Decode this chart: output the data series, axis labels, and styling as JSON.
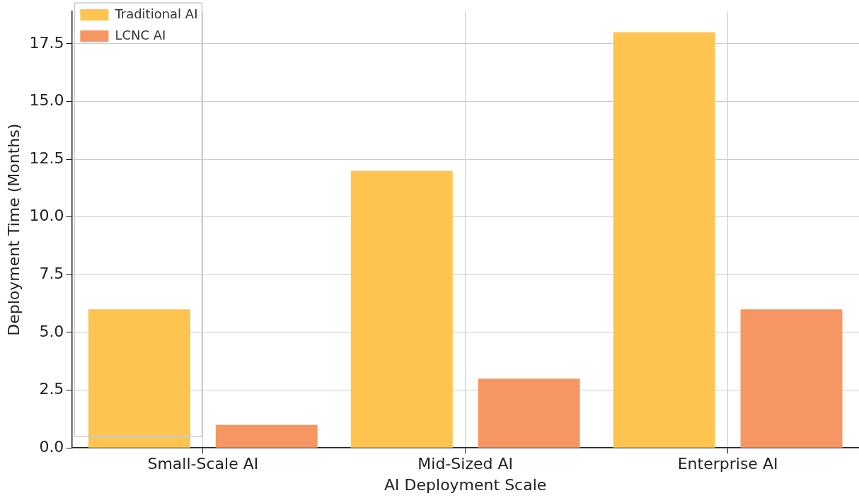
{
  "chart_data": {
    "type": "bar",
    "xlabel": "AI Deployment Scale",
    "ylabel": "Deployment Time (Months)",
    "categories": [
      "Small-Scale AI",
      "Mid-Sized AI",
      "Enterprise AI"
    ],
    "series": [
      {
        "name": "Traditional AI",
        "color": "#fec44f",
        "values": [
          6,
          12,
          18
        ]
      },
      {
        "name": "LCNC AI",
        "color": "#f69663",
        "values": [
          1,
          3,
          6
        ]
      }
    ],
    "ylim": [
      0,
      18.9
    ],
    "yticks": [
      {
        "value": 0,
        "label": "0.0"
      },
      {
        "value": 2.5,
        "label": "2.5"
      },
      {
        "value": 5,
        "label": "5.0"
      },
      {
        "value": 7.5,
        "label": "7.5"
      },
      {
        "value": 10,
        "label": "10.0"
      },
      {
        "value": 12.5,
        "label": "12.5"
      },
      {
        "value": 15,
        "label": "15.0"
      },
      {
        "value": 17.5,
        "label": "17.5"
      }
    ],
    "grid": true,
    "legend": "top left"
  }
}
